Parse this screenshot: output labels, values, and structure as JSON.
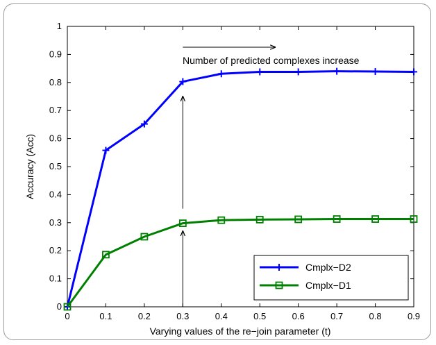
{
  "chart_data": {
    "type": "line",
    "xlabel": "Varying values of the re−join parameter (t)",
    "ylabel": "Accuracy (Acc)",
    "xlim": [
      0,
      0.9
    ],
    "ylim": [
      0,
      1
    ],
    "x_ticks": [
      "0",
      "0.1",
      "0.2",
      "0.3",
      "0.4",
      "0.5",
      "0.6",
      "0.7",
      "0.8",
      "0.9"
    ],
    "y_ticks": [
      "0",
      "0.1",
      "0.2",
      "0.3",
      "0.4",
      "0.5",
      "0.6",
      "0.7",
      "0.8",
      "0.9",
      "1"
    ],
    "x": [
      0,
      0.1,
      0.2,
      0.3,
      0.4,
      0.5,
      0.6,
      0.7,
      0.8,
      0.9
    ],
    "series": [
      {
        "name": "Cmplx−D2",
        "color": "#0000ff",
        "marker": "plus",
        "values": [
          0,
          0.558,
          0.652,
          0.803,
          0.831,
          0.838,
          0.838,
          0.84,
          0.839,
          0.838
        ]
      },
      {
        "name": "Cmplx−D1",
        "color": "#008000",
        "marker": "square",
        "values": [
          0,
          0.186,
          0.25,
          0.298,
          0.309,
          0.311,
          0.312,
          0.313,
          0.313,
          0.313
        ]
      }
    ],
    "annotation": "Number of predicted complexes increase",
    "legend_position": "bottom-right",
    "grid": false
  }
}
